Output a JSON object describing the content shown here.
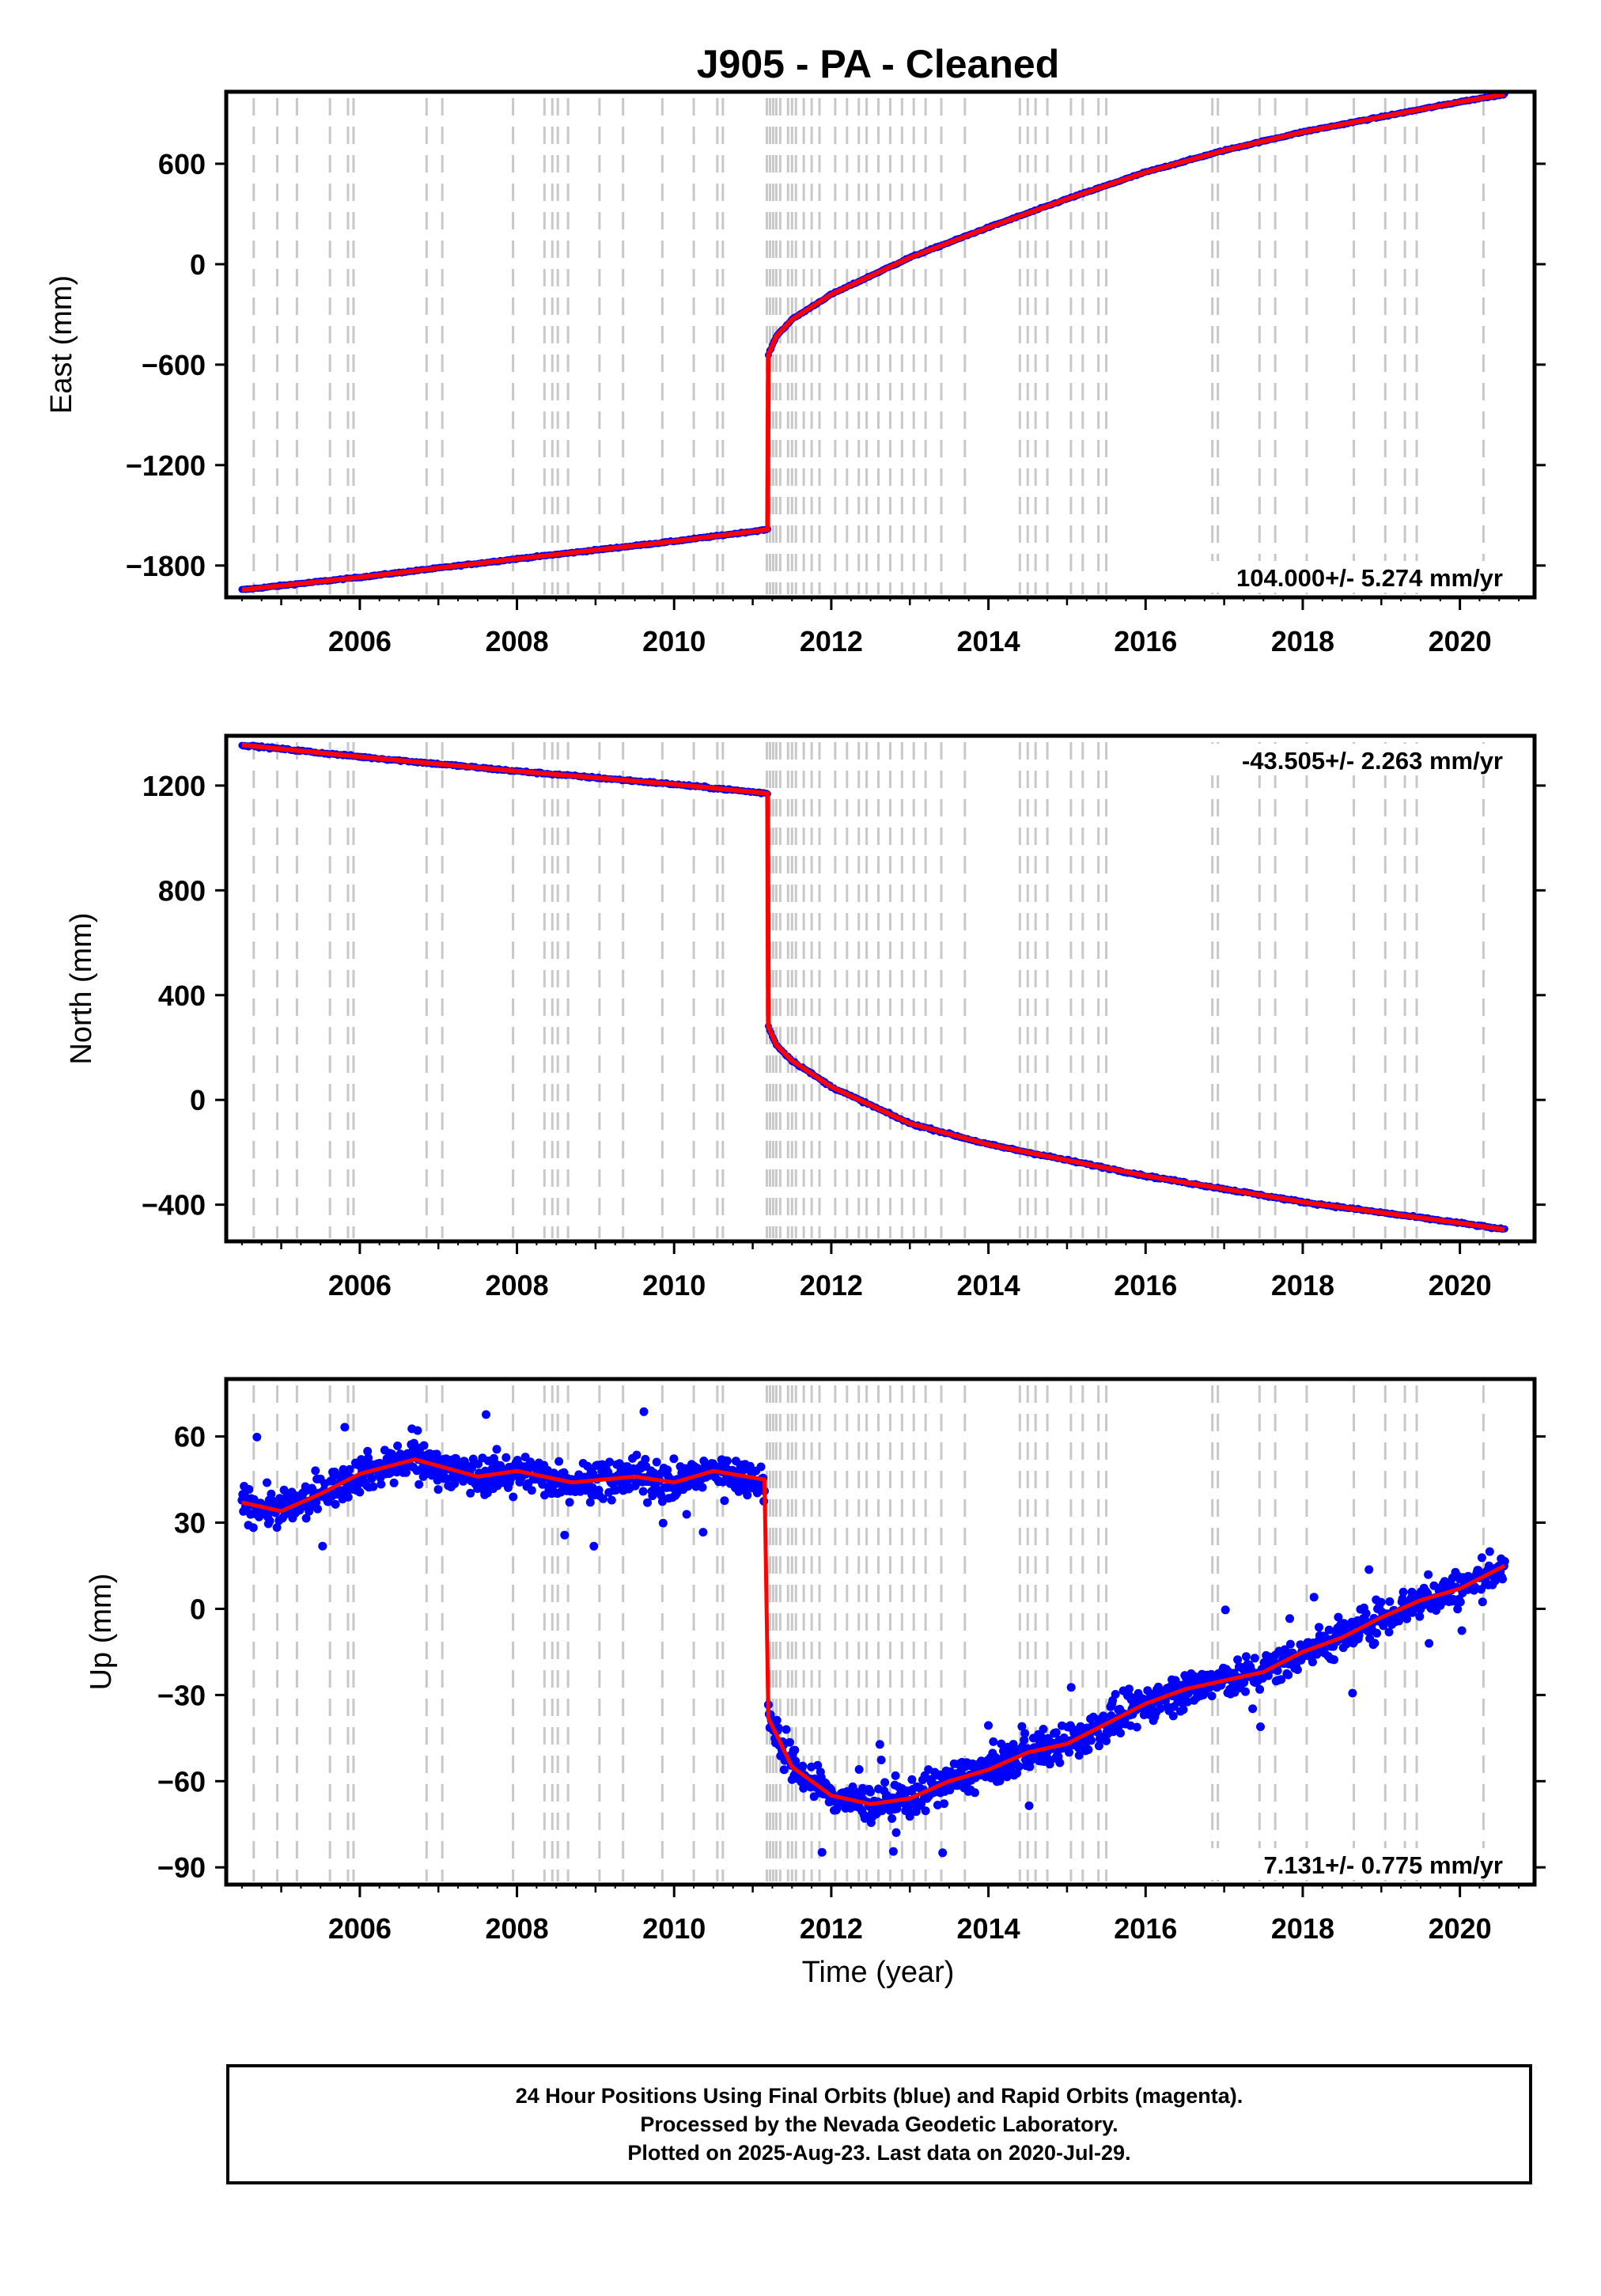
{
  "chart_data": [
    {
      "type": "scatter",
      "title": "J905  - PA - Cleaned",
      "ylabel": "East (mm)",
      "xlabel": "",
      "xlim": [
        2004.3,
        2020.95
      ],
      "ylim": [
        -1990,
        1030
      ],
      "x_ticks": [
        "2006",
        "2008",
        "2010",
        "2012",
        "2014",
        "2016",
        "2018",
        "2020"
      ],
      "y_ticks": [
        "600",
        "0",
        "−600",
        "−1200",
        "−1800"
      ],
      "y_tick_values": [
        600,
        0,
        -600,
        -1200,
        -1800
      ],
      "rate_label": "104.000+/- 5.274 mm/yr",
      "rate_position": "bottom-right",
      "series": [
        {
          "name": "",
          "color": "#0000ff",
          "style": "points",
          "segments": [
            {
              "x": [
                2004.5,
                2006.0,
                2008.0,
                2010.0,
                2011.19
              ],
              "y": [
                -1945,
                -1870,
                -1760,
                -1655,
                -1585
              ]
            },
            {
              "x": [
                2011.2,
                2011.3,
                2011.5,
                2012.0,
                2013.0,
                2014.0,
                2015.0,
                2016.0,
                2017.0,
                2018.0,
                2019.0,
                2020.0,
                2020.57
              ],
              "y": [
                -540,
                -430,
                -330,
                -180,
                40,
                220,
                390,
                550,
                680,
                790,
                880,
                970,
                1015
              ]
            }
          ]
        },
        {
          "name": "",
          "color": "#ff0000",
          "style": "line",
          "segments": [
            {
              "x": [
                2004.5,
                2006.0,
                2008.0,
                2010.0,
                2011.19
              ],
              "y": [
                -1945,
                -1870,
                -1760,
                -1655,
                -1585
              ]
            },
            {
              "x": [
                2011.2,
                2011.3,
                2011.5,
                2012.0,
                2013.0,
                2014.0,
                2015.0,
                2016.0,
                2017.0,
                2018.0,
                2019.0,
                2020.0,
                2020.57
              ],
              "y": [
                -540,
                -430,
                -330,
                -180,
                40,
                220,
                390,
                550,
                680,
                790,
                880,
                970,
                1015
              ]
            }
          ]
        }
      ]
    },
    {
      "type": "scatter",
      "title": "",
      "ylabel": "North (mm)",
      "xlabel": "",
      "xlim": [
        2004.3,
        2020.95
      ],
      "ylim": [
        -540,
        1390
      ],
      "x_ticks": [
        "2006",
        "2008",
        "2010",
        "2012",
        "2014",
        "2016",
        "2018",
        "2020"
      ],
      "y_ticks": [
        "1200",
        "800",
        "400",
        "0",
        "−400"
      ],
      "y_tick_values": [
        1200,
        800,
        400,
        0,
        -400
      ],
      "rate_label": "-43.505+/- 2.263 mm/yr",
      "rate_position": "top-right",
      "series": [
        {
          "name": "",
          "color": "#0000ff",
          "style": "points",
          "segments": [
            {
              "x": [
                2004.5,
                2006.0,
                2008.0,
                2010.0,
                2011.19
              ],
              "y": [
                1355,
                1310,
                1255,
                1205,
                1170
              ]
            },
            {
              "x": [
                2011.2,
                2011.3,
                2011.5,
                2012.0,
                2013.0,
                2014.0,
                2015.0,
                2016.0,
                2017.0,
                2018.0,
                2019.0,
                2020.0,
                2020.57
              ],
              "y": [
                280,
                210,
                150,
                50,
                -90,
                -170,
                -230,
                -290,
                -340,
                -390,
                -430,
                -470,
                -495
              ]
            }
          ]
        },
        {
          "name": "",
          "color": "#ff0000",
          "style": "line",
          "segments": [
            {
              "x": [
                2004.5,
                2006.0,
                2008.0,
                2010.0,
                2011.19
              ],
              "y": [
                1355,
                1310,
                1255,
                1205,
                1170
              ]
            },
            {
              "x": [
                2011.2,
                2011.3,
                2011.5,
                2012.0,
                2013.0,
                2014.0,
                2015.0,
                2016.0,
                2017.0,
                2018.0,
                2019.0,
                2020.0,
                2020.57
              ],
              "y": [
                280,
                210,
                150,
                50,
                -90,
                -170,
                -230,
                -290,
                -340,
                -390,
                -430,
                -470,
                -495
              ]
            }
          ]
        }
      ]
    },
    {
      "type": "scatter",
      "title": "",
      "ylabel": "Up (mm)",
      "xlabel": "Time (year)",
      "xlim": [
        2004.3,
        2020.95
      ],
      "ylim": [
        -96,
        80
      ],
      "x_ticks": [
        "2006",
        "2008",
        "2010",
        "2012",
        "2014",
        "2016",
        "2018",
        "2020"
      ],
      "y_ticks": [
        "60",
        "30",
        "0",
        "−30",
        "−60",
        "−90"
      ],
      "y_tick_values": [
        60,
        30,
        0,
        -30,
        -60,
        -90
      ],
      "rate_label": "7.131+/- 0.775 mm/yr",
      "rate_position": "bottom-right",
      "series": [
        {
          "name": "",
          "color": "#0000ff",
          "style": "points",
          "segments": [
            {
              "x": [
                2004.5,
                2005.0,
                2005.5,
                2006.0,
                2006.7,
                2007.5,
                2008.0,
                2008.7,
                2009.5,
                2010.0,
                2010.5,
                2011.15
              ],
              "y": [
                37,
                34,
                40,
                47,
                52,
                46,
                48,
                44,
                46,
                44,
                48,
                45
              ]
            },
            {
              "x": [
                2011.2,
                2011.5,
                2012.0,
                2012.5,
                2013.0,
                2013.5,
                2014.0,
                2014.5,
                2015.0,
                2015.5,
                2016.0,
                2016.5,
                2017.0,
                2017.5,
                2018.0,
                2018.5,
                2019.0,
                2019.5,
                2020.0,
                2020.57
              ],
              "y": [
                -38,
                -55,
                -65,
                -68,
                -66,
                -60,
                -56,
                -50,
                -47,
                -40,
                -33,
                -28,
                -25,
                -22,
                -15,
                -10,
                -3,
                3,
                7,
                15
              ]
            }
          ]
        },
        {
          "name": "",
          "color": "#ff0000",
          "style": "line",
          "segments": [
            {
              "x": [
                2004.5,
                2005.0,
                2005.5,
                2006.0,
                2006.7,
                2007.5,
                2008.0,
                2008.7,
                2009.5,
                2010.0,
                2010.5,
                2011.15
              ],
              "y": [
                37,
                34,
                40,
                47,
                52,
                46,
                48,
                44,
                46,
                44,
                48,
                45
              ]
            },
            {
              "x": [
                2011.2,
                2011.5,
                2012.0,
                2012.5,
                2013.0,
                2013.5,
                2014.0,
                2014.5,
                2015.0,
                2015.5,
                2016.0,
                2016.5,
                2017.0,
                2017.5,
                2018.0,
                2018.5,
                2019.0,
                2019.5,
                2020.0,
                2020.57
              ],
              "y": [
                -38,
                -55,
                -65,
                -68,
                -66,
                -60,
                -56,
                -50,
                -47,
                -40,
                -33,
                -28,
                -25,
                -22,
                -15,
                -10,
                -3,
                3,
                7,
                15
              ]
            }
          ]
        }
      ]
    }
  ],
  "event_lines": [
    2004.65,
    2004.95,
    2005.2,
    2005.62,
    2005.85,
    2005.92,
    2006.85,
    2007.05,
    2007.95,
    2008.35,
    2008.45,
    2008.52,
    2008.65,
    2009.05,
    2009.35,
    2009.85,
    2010.25,
    2010.55,
    2010.62,
    2011.18,
    2011.22,
    2011.26,
    2011.3,
    2011.35,
    2011.45,
    2011.5,
    2011.55,
    2011.65,
    2011.75,
    2011.85,
    2012.05,
    2012.2,
    2012.35,
    2012.45,
    2012.6,
    2012.75,
    2012.9,
    2013.05,
    2013.2,
    2013.4,
    2013.7,
    2014.4,
    2014.5,
    2014.6,
    2014.75,
    2015.05,
    2015.2,
    2015.4,
    2015.5,
    2016.85,
    2016.92,
    2017.45,
    2017.65,
    2018.05,
    2018.65,
    2019.05,
    2019.3,
    2019.45,
    2020.3
  ],
  "footer": {
    "line1": "24 Hour Positions Using Final Orbits (blue) and Rapid Orbits (magenta).",
    "line2": "Processed by the Nevada Geodetic Laboratory.",
    "line3": "Plotted on 2025-Aug-23. Last data on 2020-Jul-29."
  }
}
